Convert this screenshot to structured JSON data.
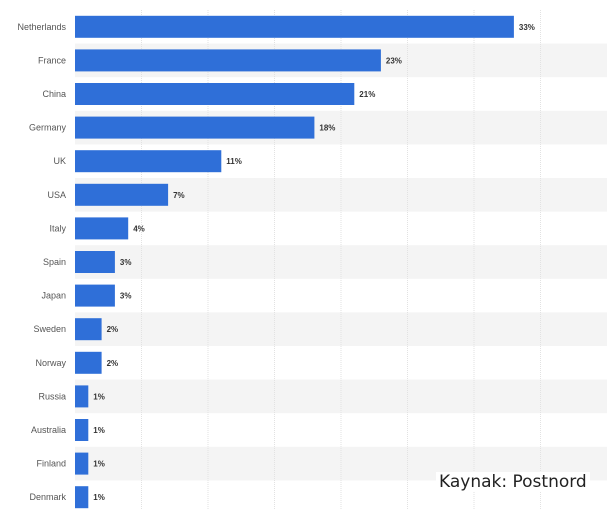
{
  "chart_data": {
    "type": "bar",
    "orientation": "horizontal",
    "categories": [
      "Netherlands",
      "France",
      "China",
      "Germany",
      "UK",
      "USA",
      "Italy",
      "Spain",
      "Japan",
      "Sweden",
      "Norway",
      "Russia",
      "Australia",
      "Finland",
      "Denmark"
    ],
    "values": [
      33,
      23,
      21,
      18,
      11,
      7,
      4,
      3,
      3,
      2,
      2,
      1,
      1,
      1,
      1
    ],
    "value_labels": [
      "33%",
      "23%",
      "21%",
      "18%",
      "11%",
      "7%",
      "4%",
      "3%",
      "3%",
      "2%",
      "2%",
      "1%",
      "1%",
      "1%",
      "1%"
    ],
    "xlim": [
      0,
      40
    ],
    "grid": true,
    "bar_color": "#2f6fd8",
    "stripe_color": "#f4f4f4"
  },
  "source_text": "Kaynak: Postnord"
}
